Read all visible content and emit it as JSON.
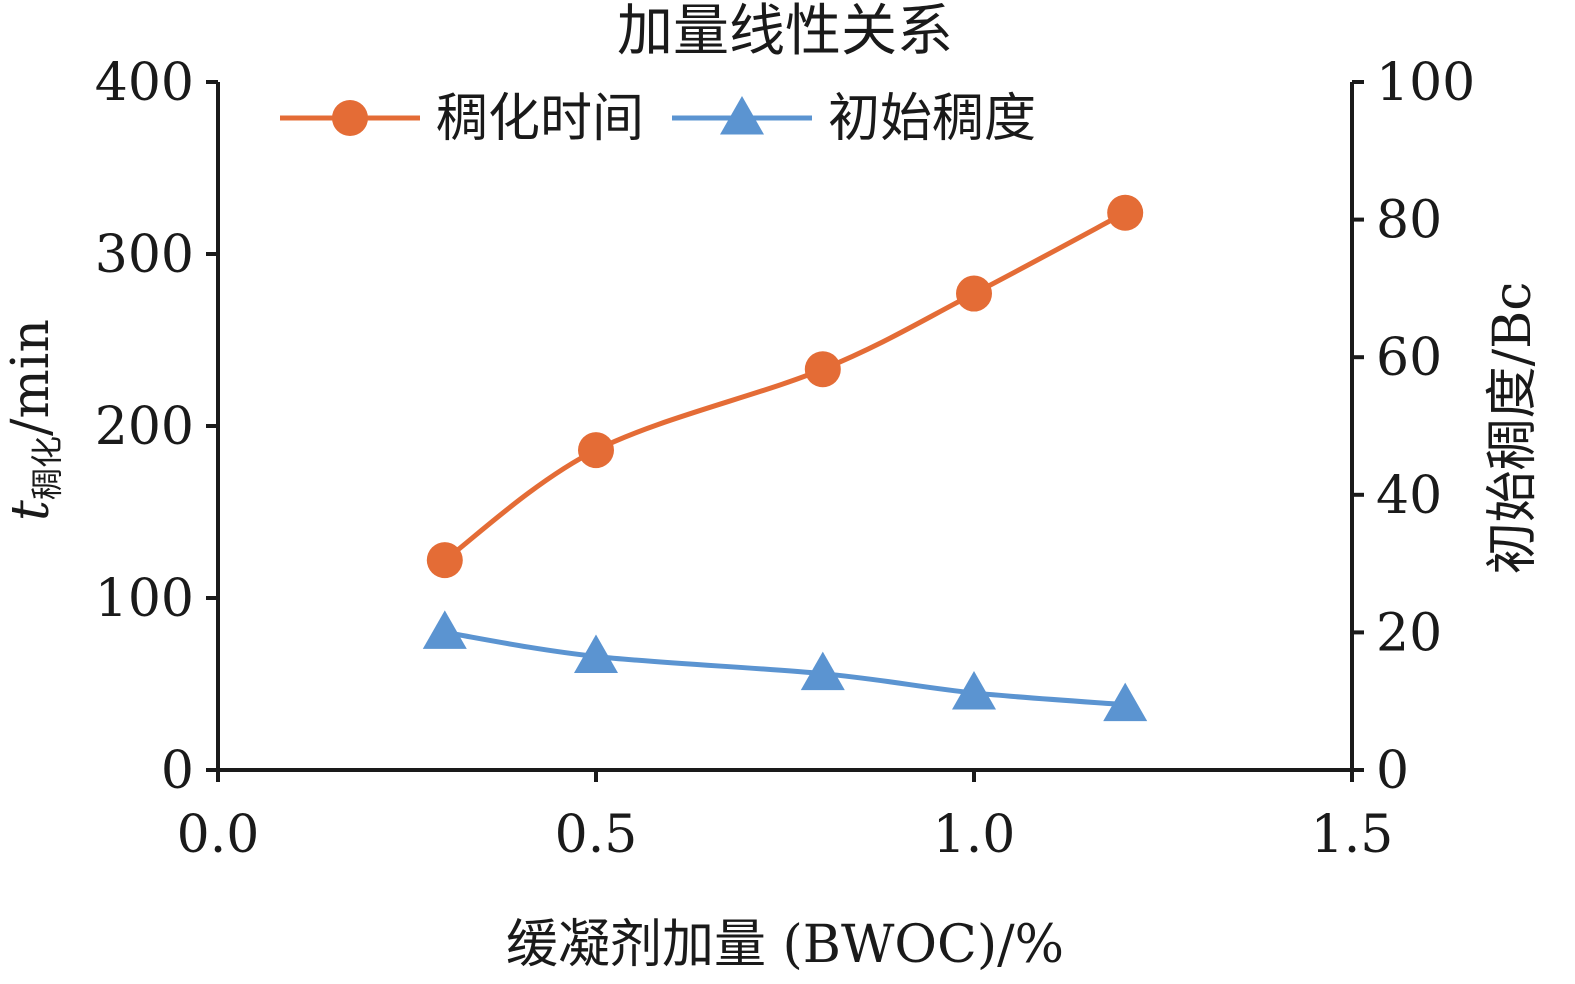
{
  "chart_data": {
    "type": "line",
    "title": "加量线性关系",
    "xlabel": "缓凝剂加量 (BWOC)/%",
    "ylabel_main": "t",
    "ylabel_sub": "稠化",
    "ylabel_unit": "/min",
    "y2label": "初始稠度/Bc",
    "xlim": [
      0.0,
      1.5
    ],
    "ylim": [
      0,
      400
    ],
    "y2lim": [
      0,
      100
    ],
    "xticks": [
      "0.0",
      "0.5",
      "1.0",
      "1.5"
    ],
    "yticks": [
      "0",
      "100",
      "200",
      "300",
      "400"
    ],
    "y2ticks": [
      "0",
      "20",
      "40",
      "60",
      "80",
      "100"
    ],
    "legend_position": "top-left",
    "series": [
      {
        "name": "稠化时间",
        "axis": "left",
        "marker": "circle",
        "color": "#E46C36",
        "x": [
          0.3,
          0.5,
          0.8,
          1.0,
          1.2
        ],
        "y": [
          122,
          186,
          233,
          277,
          324
        ]
      },
      {
        "name": "初始稠度",
        "axis": "right",
        "marker": "triangle",
        "color": "#5B94D1",
        "x": [
          0.3,
          0.5,
          0.8,
          1.0,
          1.2
        ],
        "y": [
          20,
          16.5,
          14,
          11.2,
          9.5
        ]
      }
    ]
  }
}
